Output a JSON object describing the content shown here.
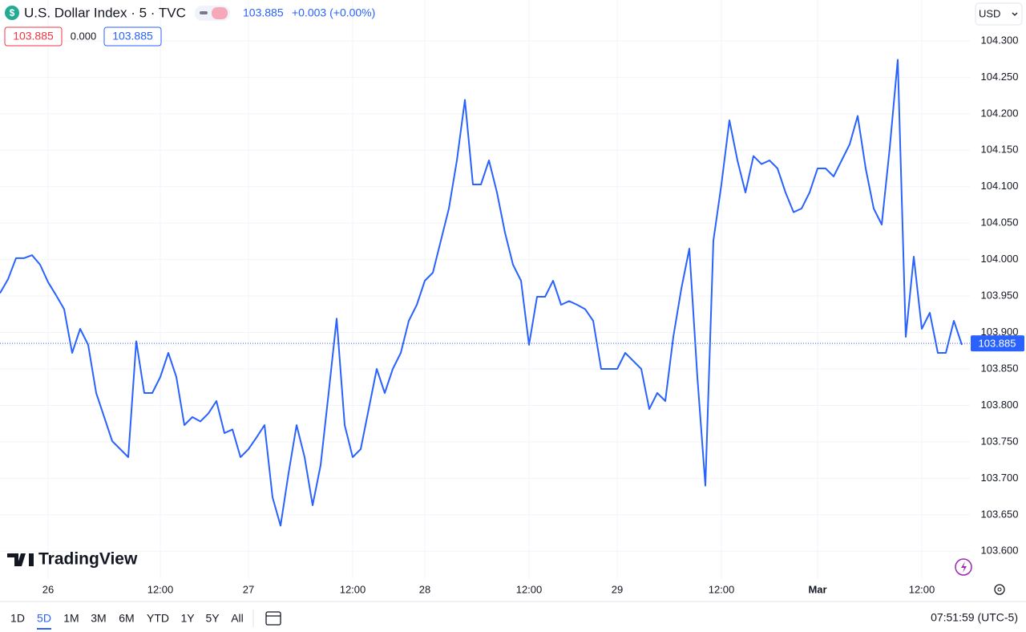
{
  "header": {
    "icon": "$",
    "title": "U.S. Dollar Index · 5 · TVC",
    "price": "103.885",
    "change": "+0.003 (+0.00%)",
    "sell": "103.885",
    "spread": "0.000",
    "buy": "103.885",
    "currency": "USD"
  },
  "logo": "TradingView",
  "toolbar": {
    "ranges": [
      "1D",
      "5D",
      "1M",
      "3M",
      "6M",
      "YTD",
      "1Y",
      "5Y",
      "All"
    ],
    "selected": "5D",
    "clock": "07:51:59 (UTC-5)"
  },
  "chart_data": {
    "type": "line",
    "categories": [
      null,
      null,
      null,
      null,
      null,
      null,
      "26",
      null,
      null,
      null,
      null,
      null,
      null,
      null,
      null,
      null,
      null,
      null,
      null,
      null,
      "12:00",
      null,
      null,
      null,
      null,
      null,
      null,
      null,
      null,
      null,
      null,
      "27",
      null,
      null,
      null,
      null,
      null,
      null,
      null,
      null,
      null,
      null,
      null,
      null,
      "12:00",
      null,
      null,
      null,
      null,
      null,
      null,
      null,
      null,
      "28",
      null,
      null,
      null,
      null,
      null,
      null,
      null,
      null,
      null,
      null,
      null,
      null,
      "12:00",
      null,
      null,
      null,
      null,
      null,
      null,
      null,
      null,
      null,
      null,
      "29",
      null,
      null,
      null,
      null,
      null,
      null,
      null,
      null,
      null,
      null,
      null,
      null,
      "12:00",
      null,
      null,
      null,
      null,
      null,
      null,
      null,
      null,
      null,
      null,
      null,
      "Mar",
      null,
      null,
      null,
      null,
      null,
      null,
      null,
      null,
      null,
      null,
      null,
      null,
      "12:00",
      null,
      null,
      null,
      null,
      null
    ],
    "series": [
      {
        "name": "U.S. Dollar Index",
        "color": "#2962ff",
        "values": [
          103.954,
          103.973,
          104.002,
          104.002,
          104.006,
          103.993,
          103.969,
          103.951,
          103.932,
          103.872,
          103.905,
          103.883,
          103.817,
          103.784,
          103.751,
          103.74,
          103.729,
          103.888,
          103.817,
          103.817,
          103.839,
          103.872,
          103.839,
          103.773,
          103.784,
          103.778,
          103.789,
          103.806,
          103.762,
          103.767,
          103.729,
          103.74,
          103.756,
          103.773,
          103.674,
          103.635,
          103.707,
          103.773,
          103.729,
          103.663,
          103.718,
          103.817,
          103.919,
          103.773,
          103.729,
          103.74,
          103.795,
          103.85,
          103.817,
          103.85,
          103.872,
          103.916,
          103.938,
          103.971,
          103.982,
          104.026,
          104.07,
          104.136,
          104.219,
          104.103,
          104.103,
          104.136,
          104.092,
          104.037,
          103.993,
          103.971,
          103.883,
          103.949,
          103.949,
          103.971,
          103.938,
          103.943,
          103.938,
          103.932,
          103.916,
          103.85,
          103.85,
          103.85,
          103.872,
          103.861,
          103.85,
          103.795,
          103.817,
          103.806,
          103.894,
          103.96,
          104.015,
          103.839,
          103.69,
          104.026,
          104.103,
          104.191,
          104.136,
          104.092,
          104.142,
          104.131,
          104.136,
          104.125,
          104.092,
          104.065,
          104.07,
          104.092,
          104.125,
          104.125,
          104.114,
          104.136,
          104.158,
          104.197,
          104.125,
          104.07,
          104.048,
          104.153,
          104.274,
          103.894,
          104.004,
          103.905,
          103.927,
          103.872,
          103.872,
          103.916,
          103.883
        ]
      }
    ],
    "ylim": [
      103.531,
      104.356
    ],
    "yticks": [
      {
        "value": 103.6,
        "label": "103.600"
      },
      {
        "value": 103.65,
        "label": "103.650"
      },
      {
        "value": 103.7,
        "label": "103.700"
      },
      {
        "value": 103.75,
        "label": "103.750"
      },
      {
        "value": 103.8,
        "label": "103.800"
      },
      {
        "value": 103.85,
        "label": "103.850"
      },
      {
        "value": 103.9,
        "label": "103.900"
      },
      {
        "value": 103.95,
        "label": "103.950"
      },
      {
        "value": 104.0,
        "label": "104.000"
      },
      {
        "value": 104.05,
        "label": "104.050"
      },
      {
        "value": 104.1,
        "label": "104.100"
      },
      {
        "value": 104.15,
        "label": "104.150"
      },
      {
        "value": 104.2,
        "label": "104.200"
      },
      {
        "value": 104.25,
        "label": "104.250"
      },
      {
        "value": 104.3,
        "label": "104.300"
      }
    ],
    "last_price": {
      "value": 103.885,
      "label": "103.885"
    },
    "grid": true
  }
}
